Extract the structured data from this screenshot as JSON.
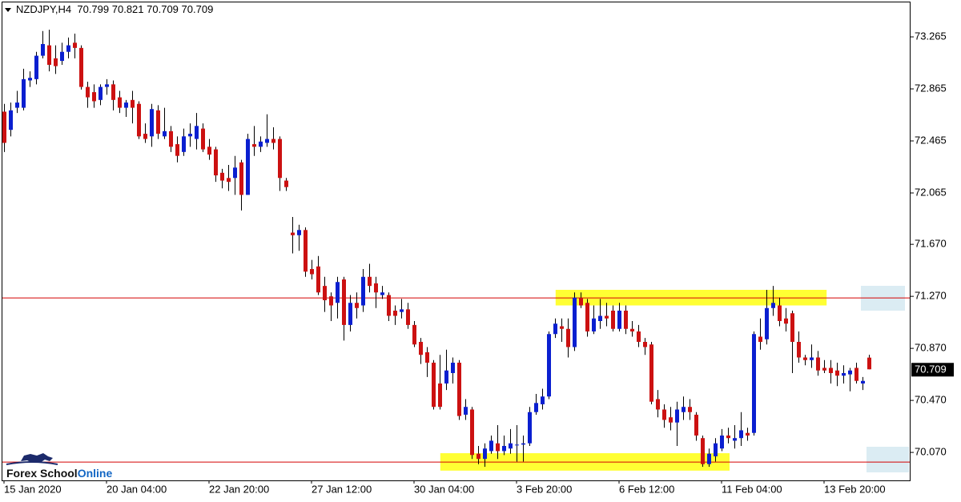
{
  "chart_data": {
    "type": "candlestick",
    "symbol": "NZDJPY,H4",
    "up_color": "#0a1fd0",
    "down_color": "#cc1111",
    "categories": [
      "15 Jan 2020",
      null,
      null,
      null,
      null,
      null,
      null,
      null,
      null,
      null,
      null,
      null,
      null,
      null,
      null,
      null,
      "20 Jan 04:00",
      null,
      null,
      null,
      null,
      null,
      null,
      null,
      null,
      null,
      null,
      null,
      null,
      null,
      null,
      null,
      "22 Jan 20:00",
      null,
      null,
      null,
      null,
      null,
      null,
      null,
      null,
      null,
      null,
      null,
      null,
      null,
      null,
      null,
      "27 Jan 12:00",
      null,
      null,
      null,
      null,
      null,
      null,
      null,
      null,
      null,
      null,
      null,
      null,
      null,
      null,
      null,
      "30 Jan 04:00",
      null,
      null,
      null,
      null,
      null,
      null,
      null,
      null,
      null,
      null,
      null,
      null,
      null,
      null,
      null,
      "3 Feb 20:00",
      null,
      null,
      null,
      null,
      null,
      null,
      null,
      null,
      null,
      null,
      null,
      null,
      null,
      null,
      null,
      "6 Feb 12:00",
      null,
      null,
      null,
      null,
      null,
      null,
      null,
      null,
      null,
      null,
      null,
      null,
      null,
      null,
      null,
      "11 Feb 04:00",
      null,
      null,
      null,
      null,
      null,
      null,
      null,
      null,
      null,
      null,
      null,
      null,
      null,
      null,
      null,
      "13 Feb 20:00",
      null,
      null,
      null,
      null,
      null,
      null,
      null
    ],
    "open": [
      72.69,
      72.55,
      72.72,
      72.72,
      72.93,
      72.94,
      73.12,
      73.2,
      73.1,
      73.08,
      73.15,
      73.22,
      73.18,
      72.88,
      72.84,
      72.78,
      72.88,
      72.9,
      72.8,
      72.72,
      72.78,
      72.75,
      72.52,
      72.5,
      72.7,
      72.5,
      72.54,
      72.44,
      72.38,
      72.5,
      72.48,
      72.56,
      72.42,
      72.4,
      72.22,
      72.18,
      72.18,
      72.3,
      72.05,
      72.44,
      72.42,
      72.45,
      72.48,
      72.48,
      72.16,
      71.76,
      71.74,
      71.78,
      71.48,
      71.5,
      71.35,
      71.27,
      71.22,
      71.4,
      71.05,
      71.22,
      71.2,
      71.42,
      71.37,
      71.28,
      71.28,
      71.16,
      71.15,
      71.17,
      71.05,
      70.92,
      70.84,
      70.76,
      70.6,
      70.6,
      70.68,
      70.76,
      70.36,
      70.4,
      70.06,
      70.02,
      70.08,
      70.14,
      70.08,
      70.1,
      70.13,
      70.13,
      70.14,
      70.38,
      70.44,
      70.5,
      70.98,
      71.04,
      71.02,
      70.88,
      71.26,
      71.22,
      71.0,
      71.08,
      71.12,
      71.16,
      71.02,
      71.16,
      71.02,
      71.0,
      70.92,
      70.9,
      70.48,
      70.4,
      70.34,
      70.3,
      70.38,
      70.42,
      70.36,
      70.18,
      69.98,
      70.04,
      70.1,
      70.2,
      70.16,
      70.18,
      70.22,
      70.22,
      70.96,
      70.94,
      71.18,
      71.2,
      71.1,
      71.14,
      70.92,
      70.8,
      70.78,
      70.8,
      70.72,
      70.72,
      70.7,
      70.66,
      70.67,
      70.72,
      70.6,
      70.799
    ],
    "high": [
      72.75,
      72.76,
      72.85,
      73.02,
      73.0,
      73.15,
      73.31,
      73.32,
      73.2,
      73.22,
      73.26,
      73.29,
      73.2,
      72.92,
      72.9,
      72.9,
      72.94,
      72.93,
      72.85,
      72.78,
      72.85,
      72.77,
      72.6,
      72.75,
      72.74,
      72.72,
      72.58,
      72.5,
      72.56,
      72.6,
      72.68,
      72.6,
      72.48,
      72.42,
      72.25,
      72.28,
      72.35,
      72.32,
      72.52,
      72.58,
      72.5,
      72.67,
      72.57,
      72.5,
      72.18,
      71.88,
      71.82,
      71.8,
      71.55,
      71.58,
      71.42,
      71.3,
      71.42,
      71.42,
      71.28,
      71.3,
      71.48,
      71.52,
      71.42,
      71.35,
      71.3,
      71.2,
      71.25,
      71.22,
      71.08,
      70.95,
      70.88,
      70.78,
      70.82,
      70.86,
      70.8,
      70.78,
      70.48,
      70.42,
      70.12,
      70.14,
      70.2,
      70.28,
      70.2,
      70.25,
      70.28,
      70.2,
      70.42,
      70.52,
      70.56,
      71.0,
      71.1,
      71.1,
      71.1,
      71.3,
      71.3,
      71.25,
      71.2,
      71.25,
      71.22,
      71.2,
      71.22,
      71.2,
      71.08,
      71.05,
      70.95,
      70.92,
      70.55,
      70.44,
      70.42,
      70.46,
      70.5,
      70.48,
      70.38,
      70.2,
      70.1,
      70.18,
      70.25,
      70.26,
      70.28,
      70.38,
      70.26,
      71.0,
      71.1,
      71.32,
      71.35,
      71.26,
      71.18,
      71.16,
      71.0,
      70.82,
      70.9,
      70.85,
      70.78,
      70.78,
      70.76,
      70.74,
      70.72,
      70.76,
      70.65,
      70.821
    ],
    "low": [
      72.38,
      72.5,
      72.68,
      72.7,
      72.88,
      72.9,
      73.1,
      73.0,
      72.98,
      73.05,
      73.1,
      73.1,
      72.86,
      72.72,
      72.72,
      72.74,
      72.82,
      72.7,
      72.68,
      72.65,
      72.6,
      72.48,
      72.45,
      72.42,
      72.48,
      72.48,
      72.38,
      72.3,
      72.35,
      72.42,
      72.4,
      72.38,
      72.32,
      72.15,
      72.1,
      72.08,
      72.05,
      71.93,
      72.05,
      72.35,
      72.38,
      72.42,
      72.4,
      72.08,
      72.08,
      71.6,
      71.62,
      71.42,
      71.4,
      71.28,
      71.15,
      71.08,
      71.1,
      70.93,
      71.0,
      71.1,
      71.15,
      71.3,
      71.18,
      71.25,
      71.08,
      71.05,
      71.1,
      71.02,
      70.88,
      70.75,
      70.65,
      70.4,
      70.4,
      70.55,
      70.6,
      70.32,
      70.32,
      70.02,
      69.98,
      69.96,
      70.06,
      70.02,
      70.05,
      70.06,
      70.0,
      70.0,
      70.12,
      70.36,
      70.4,
      70.48,
      70.95,
      70.92,
      70.8,
      70.85,
      71.18,
      70.96,
      70.98,
      71.02,
      71.04,
      71.0,
      71.0,
      70.98,
      70.96,
      70.88,
      70.82,
      70.44,
      70.34,
      70.26,
      70.24,
      70.12,
      70.32,
      70.32,
      70.16,
      69.96,
      69.96,
      70.0,
      70.08,
      70.14,
      70.1,
      70.12,
      70.16,
      70.2,
      70.86,
      70.9,
      71.12,
      71.04,
      71.0,
      70.68,
      70.76,
      70.74,
      70.72,
      70.66,
      70.68,
      70.6,
      70.58,
      70.6,
      70.54,
      70.6,
      70.55,
      70.709
    ],
    "close": [
      72.45,
      72.7,
      72.76,
      72.94,
      72.95,
      73.12,
      73.21,
      73.05,
      73.04,
      73.15,
      73.2,
      73.18,
      72.88,
      72.8,
      72.77,
      72.88,
      72.9,
      72.78,
      72.72,
      72.76,
      72.72,
      72.5,
      72.48,
      72.71,
      72.52,
      72.54,
      72.42,
      72.35,
      72.5,
      72.52,
      72.58,
      72.4,
      72.36,
      72.2,
      72.16,
      72.15,
      72.26,
      72.05,
      72.48,
      72.42,
      72.46,
      72.48,
      72.45,
      72.18,
      72.11,
      71.74,
      71.78,
      71.46,
      71.44,
      71.3,
      71.24,
      71.2,
      71.38,
      71.05,
      71.22,
      71.18,
      71.42,
      71.35,
      71.3,
      71.3,
      71.12,
      71.12,
      71.17,
      71.05,
      70.9,
      70.82,
      70.76,
      70.42,
      70.42,
      70.7,
      70.76,
      70.35,
      70.42,
      70.05,
      70.02,
      70.1,
      70.16,
      70.08,
      70.12,
      70.14,
      70.13,
      70.14,
      70.38,
      70.45,
      70.5,
      70.98,
      71.06,
      71.02,
      70.88,
      71.26,
      71.2,
      71.0,
      71.1,
      71.12,
      71.1,
      71.02,
      71.16,
      71.02,
      71.0,
      70.92,
      70.88,
      70.46,
      70.4,
      70.32,
      70.3,
      70.4,
      70.42,
      70.38,
      70.2,
      69.98,
      70.06,
      70.14,
      70.2,
      70.18,
      70.18,
      70.24,
      70.2,
      70.98,
      70.92,
      71.18,
      71.22,
      71.08,
      71.06,
      70.92,
      70.8,
      70.78,
      70.8,
      70.7,
      70.7,
      70.68,
      70.66,
      70.68,
      70.7,
      70.62,
      70.62,
      70.709
    ],
    "ylim": [
      69.855,
      73.53
    ],
    "yticks": [
      {
        "value": 73.265,
        "label": "73.265"
      },
      {
        "value": 72.865,
        "label": "72.865"
      },
      {
        "value": 72.465,
        "label": "72.465"
      },
      {
        "value": 72.065,
        "label": "72.065"
      },
      {
        "value": 71.67,
        "label": "71.670"
      },
      {
        "value": 71.27,
        "label": "71.270"
      },
      {
        "value": 70.87,
        "label": "70.870"
      },
      {
        "value": 70.47,
        "label": "70.470"
      },
      {
        "value": 70.07,
        "label": "70.070"
      }
    ],
    "hlines": [
      71.258,
      69.996
    ],
    "hline_color": "#d40000",
    "zones": [
      {
        "xlim": [
          86.1,
          128.4
        ],
        "ylim": [
          71.2,
          71.32
        ]
      },
      {
        "xlim": [
          68.1,
          113.25
        ],
        "ylim": [
          69.93,
          70.064
        ]
      }
    ],
    "zone_color": "#ffff33",
    "logo": {
      "first": "Forex School",
      "second": "Online"
    }
  }
}
